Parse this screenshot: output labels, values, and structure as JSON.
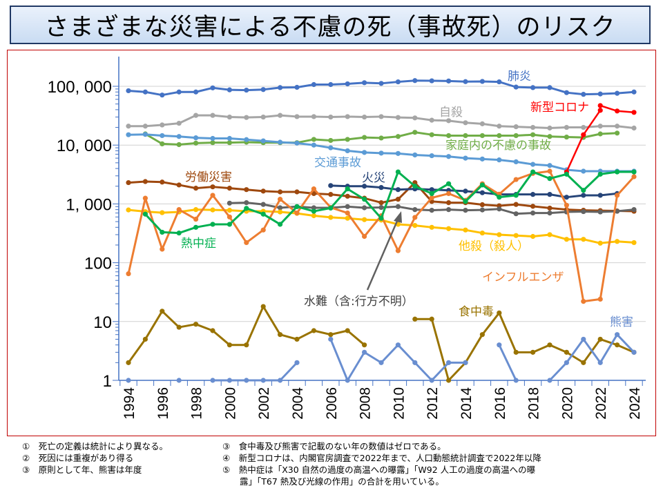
{
  "title": "さまざまな災害による不慮の死（事故死）のリスク",
  "chart_data": {
    "type": "line",
    "yscale": "log",
    "ylim": [
      1,
      100000
    ],
    "xlim": [
      1994,
      2024
    ],
    "grid": true,
    "legend": "inline labels",
    "y_tick_labels": [
      "1",
      "10",
      "100",
      "1, 000",
      "10, 000",
      "100, 000"
    ],
    "x_tick_labels": [
      "1994",
      "1996",
      "1998",
      "2000",
      "2002",
      "2004",
      "2006",
      "2008",
      "2010",
      "2012",
      "2014",
      "2016",
      "2018",
      "2020",
      "2022",
      "2024"
    ],
    "series": [
      {
        "name": "肺炎",
        "color": "#4472C4",
        "x": [
          1994,
          1995,
          1996,
          1997,
          1998,
          1999,
          2000,
          2001,
          2002,
          2003,
          2004,
          2005,
          2006,
          2007,
          2008,
          2009,
          2010,
          2011,
          2012,
          2013,
          2014,
          2015,
          2016,
          2017,
          2018,
          2019,
          2020,
          2021,
          2022,
          2023,
          2024
        ],
        "values": [
          84000,
          80000,
          71000,
          80000,
          80000,
          94000,
          87000,
          86000,
          88000,
          95000,
          96000,
          107000,
          107000,
          110000,
          115000,
          112000,
          119000,
          125000,
          124000,
          123000,
          120000,
          121000,
          119000,
          97000,
          95000,
          95000,
          78000,
          73000,
          74000,
          76000,
          80000
        ]
      },
      {
        "name": "自殺",
        "color": "#A5A5A5",
        "x": [
          1994,
          1995,
          1996,
          1997,
          1998,
          1999,
          2000,
          2001,
          2002,
          2003,
          2004,
          2005,
          2006,
          2007,
          2008,
          2009,
          2010,
          2011,
          2012,
          2013,
          2014,
          2015,
          2016,
          2017,
          2018,
          2019,
          2020,
          2021,
          2022,
          2023,
          2024
        ],
        "values": [
          21000,
          21000,
          22000,
          23500,
          32000,
          32000,
          30000,
          29500,
          30000,
          32000,
          30500,
          30500,
          30000,
          30500,
          30000,
          30500,
          29500,
          29000,
          26500,
          26000,
          24000,
          23000,
          21000,
          20500,
          20000,
          19500,
          20000,
          20000,
          21000,
          21000,
          19500
        ]
      },
      {
        "name": "家庭内の不慮の事故",
        "color": "#70AD47",
        "x": [
          1995,
          1996,
          1997,
          1998,
          1999,
          2000,
          2001,
          2002,
          2003,
          2004,
          2005,
          2006,
          2007,
          2008,
          2009,
          2010,
          2011,
          2012,
          2013,
          2014,
          2015,
          2016,
          2017,
          2018,
          2019,
          2020,
          2021,
          2022,
          2023
        ],
        "values": [
          15500,
          10500,
          10200,
          10800,
          11000,
          11000,
          11200,
          11000,
          11000,
          11000,
          12500,
          12000,
          12500,
          13500,
          13200,
          14000,
          16500,
          15000,
          14500,
          14500,
          14500,
          14500,
          14500,
          15000,
          14000,
          13700,
          13500,
          15500,
          16000
        ]
      },
      {
        "name": "交通事故",
        "color": "#5B9BD5",
        "x": [
          1994,
          1995,
          1996,
          1997,
          1998,
          1999,
          2000,
          2001,
          2002,
          2003,
          2004,
          2005,
          2006,
          2007,
          2008,
          2009,
          2010,
          2011,
          2012,
          2013,
          2014,
          2015,
          2016,
          2017,
          2018,
          2019,
          2020,
          2021,
          2022,
          2023,
          2024
        ],
        "values": [
          15000,
          15200,
          14500,
          14000,
          13300,
          13000,
          13000,
          12400,
          11800,
          11200,
          10800,
          10000,
          9000,
          8000,
          7500,
          7300,
          7200,
          6800,
          6600,
          6400,
          6000,
          5800,
          5600,
          5200,
          4700,
          4500,
          3800,
          3600,
          3600,
          3600,
          3600
        ]
      },
      {
        "name": "新型コロナ",
        "color": "#FF0000",
        "x": [
          2020,
          2021,
          2022,
          2022,
          2023,
          2024
        ],
        "values": [
          3500,
          15000,
          39000,
          47000,
          38000,
          36000
        ]
      },
      {
        "name": "労働災害",
        "color": "#9E480E",
        "x": [
          1994,
          1995,
          1996,
          1997,
          1998,
          1999,
          2000,
          2001,
          2002,
          2003,
          2004,
          2005,
          2006,
          2007,
          2008,
          2009,
          2010,
          2011,
          2012,
          2013,
          2014,
          2015,
          2016,
          2017,
          2018,
          2019,
          2020,
          2021,
          2022,
          2023,
          2024
        ],
        "values": [
          2300,
          2400,
          2350,
          2100,
          1850,
          1950,
          1850,
          1750,
          1650,
          1600,
          1600,
          1500,
          1450,
          1350,
          1250,
          1050,
          1200,
          2300,
          1100,
          1050,
          1050,
          970,
          930,
          980,
          910,
          850,
          800,
          780,
          770,
          760,
          750
        ]
      },
      {
        "name": "火災",
        "color": "#264478",
        "x": [
          2006,
          2007,
          2008,
          2009,
          2010,
          2011,
          2012,
          2013,
          2014,
          2015,
          2016,
          2017,
          2018,
          2019,
          2020,
          2021,
          2022,
          2023
        ],
        "values": [
          2050,
          2000,
          2000,
          1900,
          1750,
          1800,
          1750,
          1700,
          1650,
          1550,
          1450,
          1450,
          1450,
          1450,
          1300,
          1400,
          1400,
          1500
        ]
      },
      {
        "name": "水難（含:行方不明）",
        "color": "#636363",
        "x": [
          2000,
          2001,
          2002,
          2003,
          2004,
          2005,
          2006,
          2007,
          2008,
          2009,
          2010,
          2011,
          2012,
          2013,
          2014,
          2015,
          2016,
          2017,
          2018,
          2019,
          2020,
          2021,
          2022,
          2023,
          2024
        ],
        "values": [
          1030,
          1050,
          980,
          860,
          900,
          860,
          860,
          900,
          860,
          870,
          900,
          800,
          780,
          800,
          780,
          790,
          820,
          680,
          700,
          700,
          730,
          740,
          730,
          750,
          800
        ]
      },
      {
        "name": "他殺（殺人）",
        "color": "#FFC000",
        "x": [
          1994,
          1995,
          1996,
          1997,
          1998,
          1999,
          2000,
          2001,
          2002,
          2003,
          2004,
          2005,
          2006,
          2007,
          2008,
          2009,
          2010,
          2011,
          2012,
          2013,
          2014,
          2015,
          2016,
          2017,
          2018,
          2019,
          2020,
          2021,
          2022,
          2023,
          2024
        ],
        "values": [
          790,
          740,
          710,
          730,
          800,
          790,
          780,
          750,
          750,
          730,
          690,
          630,
          590,
          570,
          540,
          530,
          450,
          430,
          400,
          380,
          360,
          320,
          300,
          290,
          280,
          300,
          250,
          250,
          215,
          230,
          220
        ]
      },
      {
        "name": "インフルエンザ",
        "color": "#ED7D31",
        "x": [
          1994,
          1995,
          1996,
          1997,
          1998,
          1999,
          2000,
          2001,
          2002,
          2003,
          2004,
          2005,
          2006,
          2007,
          2008,
          2009,
          2010,
          2011,
          2012,
          2013,
          2014,
          2015,
          2016,
          2017,
          2018,
          2019,
          2020,
          2021,
          2022,
          2023,
          2024
        ],
        "values": [
          65,
          1250,
          170,
          800,
          550,
          1400,
          600,
          220,
          360,
          1200,
          700,
          1800,
          870,
          700,
          280,
          630,
          160,
          590,
          1270,
          1500,
          1150,
          2200,
          1460,
          2600,
          3300,
          3600,
          950,
          22,
          24,
          1400,
          2900
        ]
      },
      {
        "name": "熱中症",
        "color": "#00B050",
        "x": [
          1995,
          1996,
          1997,
          1998,
          1999,
          2000,
          2001,
          2002,
          2003,
          2004,
          2005,
          2006,
          2007,
          2008,
          2009,
          2010,
          2011,
          2012,
          2013,
          2014,
          2015,
          2016,
          2017,
          2018,
          2019,
          2020,
          2021,
          2022,
          2023,
          2024
        ],
        "values": [
          670,
          330,
          320,
          400,
          450,
          450,
          840,
          670,
          450,
          900,
          750,
          850,
          1800,
          1200,
          570,
          3500,
          2000,
          1500,
          2200,
          1100,
          2100,
          1300,
          1400,
          3500,
          2700,
          3200,
          1700,
          3200,
          3500,
          3500
        ]
      },
      {
        "name": "食中毒",
        "color": "#997300",
        "x": [
          1994,
          1995,
          1996,
          1997,
          1998,
          1999,
          2000,
          2001,
          2002,
          2003,
          2004,
          2005,
          2006,
          2007,
          2008,
          2009,
          2010,
          2011,
          2012,
          2013,
          2014,
          2015,
          2016,
          2017,
          2018,
          2019,
          2020,
          2021,
          2022,
          2023,
          2024
        ],
        "values": [
          2,
          5,
          15,
          8,
          9,
          7,
          4,
          4,
          18,
          6,
          5,
          7,
          6,
          7,
          4,
          null,
          null,
          11,
          11,
          1,
          2,
          6,
          14,
          3,
          3,
          4,
          3,
          2,
          5,
          4,
          3
        ]
      },
      {
        "name": "熊害",
        "color": "#698ED0",
        "x": [
          1994,
          1995,
          1996,
          1997,
          1998,
          1999,
          2000,
          2001,
          2002,
          2003,
          2004,
          2005,
          2006,
          2007,
          2008,
          2009,
          2010,
          2011,
          2012,
          2013,
          2014,
          2015,
          2016,
          2017,
          2018,
          2019,
          2020,
          2021,
          2022,
          2023,
          2024
        ],
        "values": [
          1,
          null,
          null,
          1,
          null,
          1,
          1,
          1,
          1,
          1,
          2,
          null,
          5,
          1,
          3,
          2,
          4,
          2,
          1,
          2,
          2,
          null,
          4,
          1,
          null,
          1,
          2,
          5,
          2,
          6,
          3
        ]
      }
    ]
  },
  "notes": {
    "left": [
      "①　死亡の定義は統計により異なる。",
      "②　死因には重複があり得る",
      "③　原則として年、熊害は年度"
    ],
    "right": [
      "③　食中毒及び熊害で記載のない年の数値はゼロである。",
      "④　新型コロナは、内閣官房調査で2022年まで、人口動態統計調査で2022年以降",
      "⑤　熱中症は「X30 自然の過度の高温への曝露」「W92 人工の過度の高温への曝",
      "　　露」「T67 熱及び光線の作用」の合計を用いている。"
    ]
  }
}
